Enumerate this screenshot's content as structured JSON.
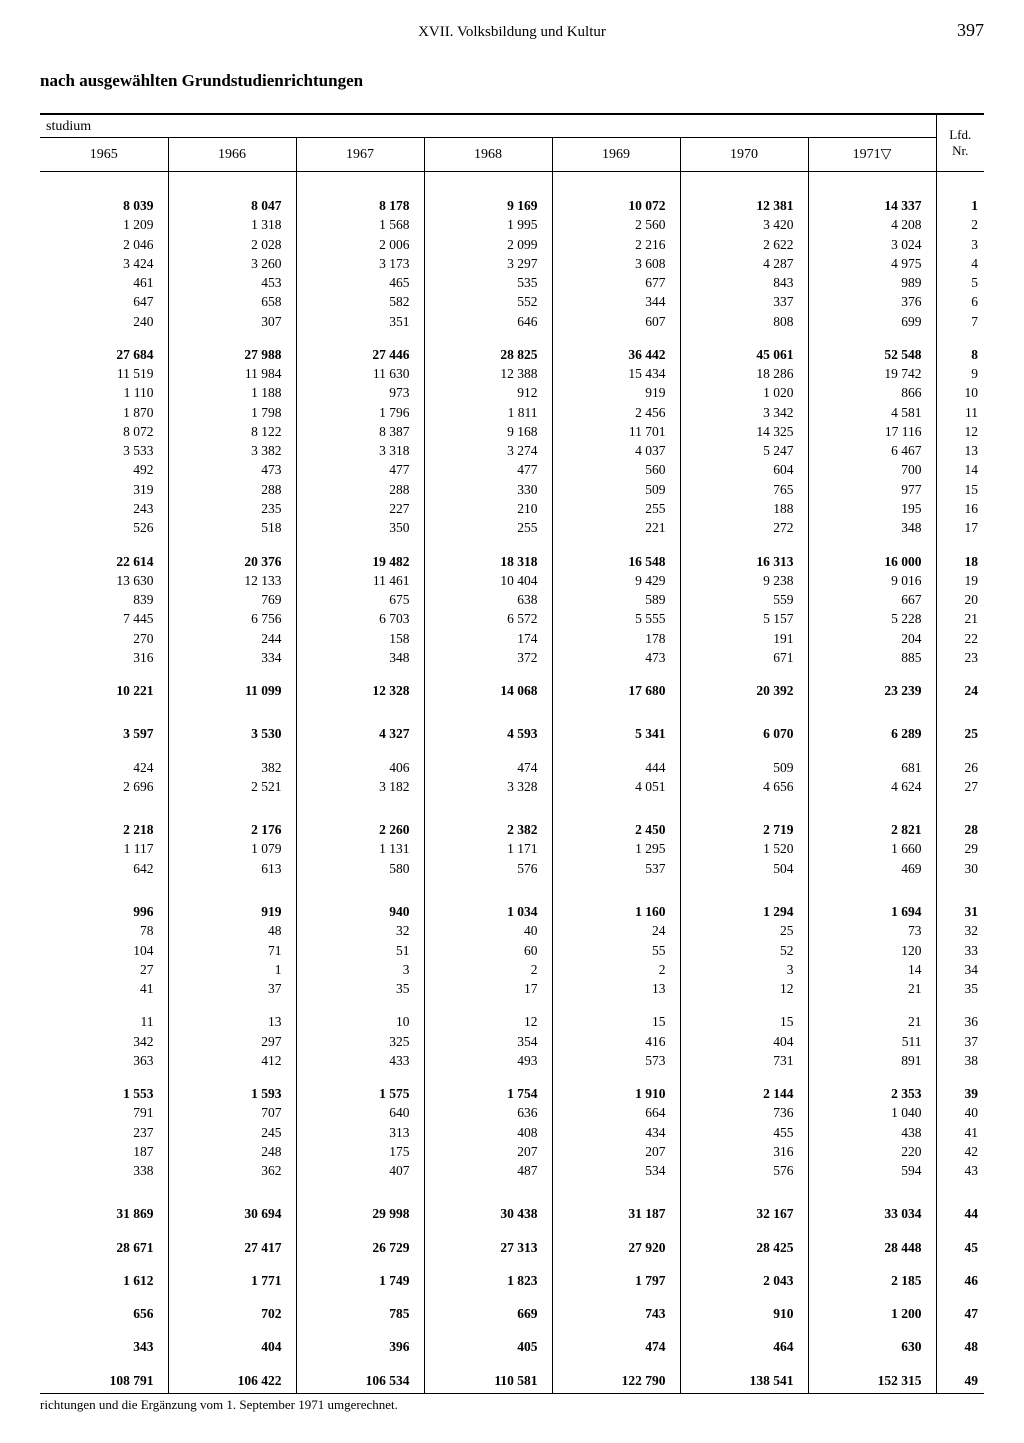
{
  "header": {
    "chapter": "XVII. Volksbildung und Kultur",
    "page": "397",
    "subtitle": "nach ausgewählten Grundstudienrichtungen",
    "studium_label": "studium",
    "lfd_label": "Lfd.\nNr."
  },
  "years": [
    "1965",
    "1966",
    "1967",
    "1968",
    "1969",
    "1970",
    "1971▽"
  ],
  "rows": [
    {
      "t": "bigspacer"
    },
    {
      "t": "bold",
      "v": [
        "8 039",
        "8 047",
        "8 178",
        "9 169",
        "10 072",
        "12 381",
        "14 337"
      ],
      "n": "1"
    },
    {
      "t": "",
      "v": [
        "1 209",
        "1 318",
        "1 568",
        "1 995",
        "2 560",
        "3 420",
        "4 208"
      ],
      "n": "2"
    },
    {
      "t": "",
      "v": [
        "2 046",
        "2 028",
        "2 006",
        "2 099",
        "2 216",
        "2 622",
        "3 024"
      ],
      "n": "3"
    },
    {
      "t": "",
      "v": [
        "3 424",
        "3 260",
        "3 173",
        "3 297",
        "3 608",
        "4 287",
        "4 975"
      ],
      "n": "4"
    },
    {
      "t": "",
      "v": [
        "461",
        "453",
        "465",
        "535",
        "677",
        "843",
        "989"
      ],
      "n": "5"
    },
    {
      "t": "",
      "v": [
        "647",
        "658",
        "582",
        "552",
        "344",
        "337",
        "376"
      ],
      "n": "6"
    },
    {
      "t": "",
      "v": [
        "240",
        "307",
        "351",
        "646",
        "607",
        "808",
        "699"
      ],
      "n": "7"
    },
    {
      "t": "spacer"
    },
    {
      "t": "bold",
      "v": [
        "27 684",
        "27 988",
        "27 446",
        "28 825",
        "36 442",
        "45 061",
        "52 548"
      ],
      "n": "8"
    },
    {
      "t": "",
      "v": [
        "11 519",
        "11 984",
        "11 630",
        "12 388",
        "15 434",
        "18 286",
        "19 742"
      ],
      "n": "9"
    },
    {
      "t": "",
      "v": [
        "1 110",
        "1 188",
        "973",
        "912",
        "919",
        "1 020",
        "866"
      ],
      "n": "10"
    },
    {
      "t": "",
      "v": [
        "1 870",
        "1 798",
        "1 796",
        "1 811",
        "2 456",
        "3 342",
        "4 581"
      ],
      "n": "11"
    },
    {
      "t": "",
      "v": [
        "8 072",
        "8 122",
        "8 387",
        "9 168",
        "11 701",
        "14 325",
        "17 116"
      ],
      "n": "12"
    },
    {
      "t": "",
      "v": [
        "3 533",
        "3 382",
        "3 318",
        "3 274",
        "4 037",
        "5 247",
        "6 467"
      ],
      "n": "13"
    },
    {
      "t": "",
      "v": [
        "492",
        "473",
        "477",
        "477",
        "560",
        "604",
        "700"
      ],
      "n": "14"
    },
    {
      "t": "",
      "v": [
        "319",
        "288",
        "288",
        "330",
        "509",
        "765",
        "977"
      ],
      "n": "15"
    },
    {
      "t": "",
      "v": [
        "243",
        "235",
        "227",
        "210",
        "255",
        "188",
        "195"
      ],
      "n": "16"
    },
    {
      "t": "",
      "v": [
        "526",
        "518",
        "350",
        "255",
        "221",
        "272",
        "348"
      ],
      "n": "17"
    },
    {
      "t": "spacer"
    },
    {
      "t": "bold",
      "v": [
        "22 614",
        "20 376",
        "19 482",
        "18 318",
        "16 548",
        "16 313",
        "16 000"
      ],
      "n": "18"
    },
    {
      "t": "",
      "v": [
        "13 630",
        "12 133",
        "11 461",
        "10 404",
        "9 429",
        "9 238",
        "9 016"
      ],
      "n": "19"
    },
    {
      "t": "",
      "v": [
        "839",
        "769",
        "675",
        "638",
        "589",
        "559",
        "667"
      ],
      "n": "20"
    },
    {
      "t": "",
      "v": [
        "7 445",
        "6 756",
        "6 703",
        "6 572",
        "5 555",
        "5 157",
        "5 228"
      ],
      "n": "21"
    },
    {
      "t": "",
      "v": [
        "270",
        "244",
        "158",
        "174",
        "178",
        "191",
        "204"
      ],
      "n": "22"
    },
    {
      "t": "",
      "v": [
        "316",
        "334",
        "348",
        "372",
        "473",
        "671",
        "885"
      ],
      "n": "23"
    },
    {
      "t": "spacer"
    },
    {
      "t": "bold",
      "v": [
        "10 221",
        "11 099",
        "12 328",
        "14 068",
        "17 680",
        "20 392",
        "23 239"
      ],
      "n": "24"
    },
    {
      "t": "bigspacer"
    },
    {
      "t": "bold",
      "v": [
        "3 597",
        "3 530",
        "4 327",
        "4 593",
        "5 341",
        "6 070",
        "6 289"
      ],
      "n": "25"
    },
    {
      "t": "spacer"
    },
    {
      "t": "",
      "v": [
        "424",
        "382",
        "406",
        "474",
        "444",
        "509",
        "681"
      ],
      "n": "26"
    },
    {
      "t": "",
      "v": [
        "2 696",
        "2 521",
        "3 182",
        "3 328",
        "4 051",
        "4 656",
        "4 624"
      ],
      "n": "27"
    },
    {
      "t": "bigspacer"
    },
    {
      "t": "bold",
      "v": [
        "2 218",
        "2 176",
        "2 260",
        "2 382",
        "2 450",
        "2 719",
        "2 821"
      ],
      "n": "28"
    },
    {
      "t": "",
      "v": [
        "1 117",
        "1 079",
        "1 131",
        "1 171",
        "1 295",
        "1 520",
        "1 660"
      ],
      "n": "29"
    },
    {
      "t": "",
      "v": [
        "642",
        "613",
        "580",
        "576",
        "537",
        "504",
        "469"
      ],
      "n": "30"
    },
    {
      "t": "bigspacer"
    },
    {
      "t": "bold",
      "v": [
        "996",
        "919",
        "940",
        "1 034",
        "1 160",
        "1 294",
        "1 694"
      ],
      "n": "31"
    },
    {
      "t": "",
      "v": [
        "78",
        "48",
        "32",
        "40",
        "24",
        "25",
        "73"
      ],
      "n": "32"
    },
    {
      "t": "",
      "v": [
        "104",
        "71",
        "51",
        "60",
        "55",
        "52",
        "120"
      ],
      "n": "33"
    },
    {
      "t": "",
      "v": [
        "27",
        "1",
        "3",
        "2",
        "2",
        "3",
        "14"
      ],
      "n": "34"
    },
    {
      "t": "",
      "v": [
        "41",
        "37",
        "35",
        "17",
        "13",
        "12",
        "21"
      ],
      "n": "35"
    },
    {
      "t": "spacer"
    },
    {
      "t": "",
      "v": [
        "11",
        "13",
        "10",
        "12",
        "15",
        "15",
        "21"
      ],
      "n": "36"
    },
    {
      "t": "",
      "v": [
        "342",
        "297",
        "325",
        "354",
        "416",
        "404",
        "511"
      ],
      "n": "37"
    },
    {
      "t": "",
      "v": [
        "363",
        "412",
        "433",
        "493",
        "573",
        "731",
        "891"
      ],
      "n": "38"
    },
    {
      "t": "spacer"
    },
    {
      "t": "bold",
      "v": [
        "1 553",
        "1 593",
        "1 575",
        "1 754",
        "1 910",
        "2 144",
        "2 353"
      ],
      "n": "39"
    },
    {
      "t": "",
      "v": [
        "791",
        "707",
        "640",
        "636",
        "664",
        "736",
        "1 040"
      ],
      "n": "40"
    },
    {
      "t": "",
      "v": [
        "237",
        "245",
        "313",
        "408",
        "434",
        "455",
        "438"
      ],
      "n": "41"
    },
    {
      "t": "",
      "v": [
        "187",
        "248",
        "175",
        "207",
        "207",
        "316",
        "220"
      ],
      "n": "42"
    },
    {
      "t": "",
      "v": [
        "338",
        "362",
        "407",
        "487",
        "534",
        "576",
        "594"
      ],
      "n": "43"
    },
    {
      "t": "bigspacer"
    },
    {
      "t": "bold",
      "v": [
        "31 869",
        "30 694",
        "29 998",
        "30 438",
        "31 187",
        "32 167",
        "33 034"
      ],
      "n": "44"
    },
    {
      "t": "spacer"
    },
    {
      "t": "bold",
      "v": [
        "28 671",
        "27 417",
        "26 729",
        "27 313",
        "27 920",
        "28 425",
        "28 448"
      ],
      "n": "45"
    },
    {
      "t": "spacer"
    },
    {
      "t": "bold",
      "v": [
        "1 612",
        "1 771",
        "1 749",
        "1 823",
        "1 797",
        "2 043",
        "2 185"
      ],
      "n": "46"
    },
    {
      "t": "spacer"
    },
    {
      "t": "bold",
      "v": [
        "656",
        "702",
        "785",
        "669",
        "743",
        "910",
        "1 200"
      ],
      "n": "47"
    },
    {
      "t": "spacer"
    },
    {
      "t": "bold",
      "v": [
        "343",
        "404",
        "396",
        "405",
        "474",
        "464",
        "630"
      ],
      "n": "48"
    },
    {
      "t": "spacer"
    },
    {
      "t": "bold last",
      "v": [
        "108 791",
        "106 422",
        "106 534",
        "110 581",
        "122 790",
        "138 541",
        "152 315"
      ],
      "n": "49"
    }
  ],
  "footnote": "richtungen und die Ergänzung vom 1. September 1971 umgerechnet."
}
